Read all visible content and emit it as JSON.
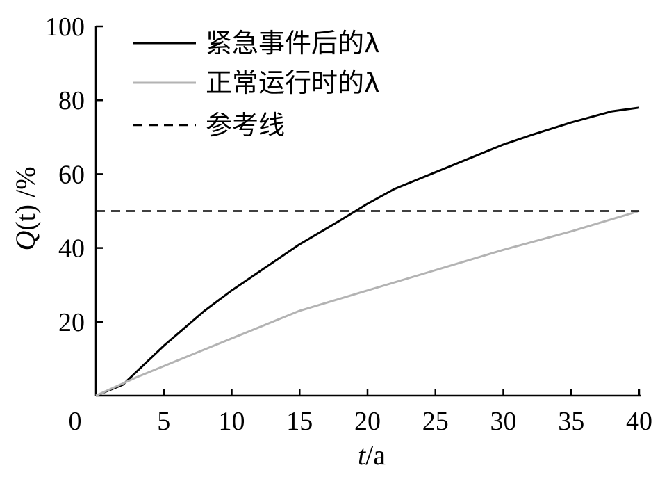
{
  "chart_data": {
    "type": "line",
    "xlim": [
      0,
      40
    ],
    "ylim": [
      0,
      100
    ],
    "x_ticks": [
      "0",
      "5",
      "10",
      "15",
      "20",
      "25",
      "30",
      "35",
      "40"
    ],
    "y_ticks": [
      "20",
      "40",
      "60",
      "80",
      "100"
    ],
    "xlabel_var": "t",
    "xlabel_unit": "/a",
    "ylabel_func": "Q",
    "ylabel_arg": "(t)",
    "ylabel_unit": " /%",
    "legend_position": "top-left",
    "series": [
      {
        "name": "紧急事件后的λ",
        "color": "#000000",
        "style": "solid",
        "points": [
          [
            0,
            0
          ],
          [
            2,
            3
          ],
          [
            5,
            13.5
          ],
          [
            8,
            23
          ],
          [
            10,
            28.5
          ],
          [
            12,
            33.5
          ],
          [
            15,
            41
          ],
          [
            18,
            47.5
          ],
          [
            20,
            52
          ],
          [
            22,
            56
          ],
          [
            25,
            60.5
          ],
          [
            28,
            65
          ],
          [
            30,
            68
          ],
          [
            32,
            70.5
          ],
          [
            35,
            74
          ],
          [
            38,
            77
          ],
          [
            40,
            78
          ]
        ]
      },
      {
        "name": "正常运行时的λ",
        "color": "#b3b3b3",
        "style": "solid",
        "points": [
          [
            0,
            0
          ],
          [
            3,
            5
          ],
          [
            5,
            8
          ],
          [
            8,
            12.5
          ],
          [
            10,
            15.5
          ],
          [
            15,
            23
          ],
          [
            20,
            28.5
          ],
          [
            25,
            34
          ],
          [
            30,
            39.5
          ],
          [
            35,
            44.5
          ],
          [
            40,
            50
          ]
        ]
      },
      {
        "name": "参考线",
        "color": "#000000",
        "style": "dashed",
        "points": [
          [
            0,
            50
          ],
          [
            40,
            50
          ]
        ]
      }
    ]
  }
}
